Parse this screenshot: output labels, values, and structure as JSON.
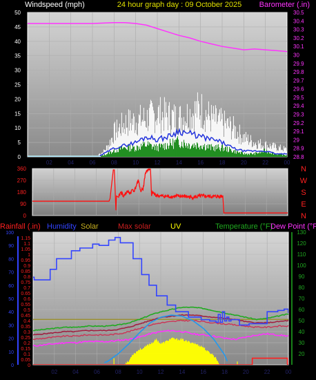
{
  "title": "24 hour graph day : 09 October 2025",
  "colors": {
    "wind_axis": "#ffffff",
    "baro": "#ff33ff",
    "rain": "#ff2020",
    "humidity": "#3344ff",
    "solar": "#c8b020",
    "maxsolar": "#cc2020",
    "uv": "#ffff00",
    "temp": "#20aa20",
    "dew": "#ff33ff",
    "winddir": "#ff1010",
    "dirlabels": "#ff2020"
  },
  "x_ticks": [
    "02",
    "04",
    "06",
    "08",
    "10",
    "12",
    "14",
    "16",
    "18",
    "20",
    "22",
    "00"
  ],
  "chart_data": [
    {
      "type": "area",
      "ylabel_left": "Windspeed (mph)",
      "ylabel_right": "Barometer (.in)",
      "ylim_left": [
        0,
        50
      ],
      "ylim_right": [
        28.8,
        30.5
      ],
      "left_ticks": [
        "0",
        "5",
        "10",
        "15",
        "20",
        "25",
        "30",
        "35",
        "40",
        "45",
        "50"
      ],
      "right_ticks": [
        "28.8",
        "28.9",
        "29",
        "29.1",
        "29.2",
        "29.3",
        "29.4",
        "29.5",
        "29.6",
        "29.7",
        "29.8",
        "29.9",
        "30",
        "30.1",
        "30.2",
        "30.3",
        "30.4",
        "30.5"
      ],
      "series": [
        {
          "name": "Barometer",
          "axis": "right",
          "x": [
            0,
            2,
            4,
            6,
            8,
            9,
            10,
            11,
            12,
            13,
            14,
            15,
            16,
            17,
            18,
            19,
            20,
            21,
            22,
            23,
            24
          ],
          "values": [
            30.37,
            30.37,
            30.37,
            30.37,
            30.38,
            30.38,
            30.37,
            30.35,
            30.31,
            30.27,
            30.23,
            30.2,
            30.16,
            30.13,
            30.1,
            30.08,
            30.06,
            30.07,
            30.06,
            30.05,
            30.04
          ]
        },
        {
          "name": "Gust",
          "axis": "left",
          "x": [
            0,
            6.5,
            7,
            7.5,
            8,
            9,
            10,
            11,
            12,
            13,
            14,
            15,
            16,
            17,
            18,
            19,
            20,
            21,
            22,
            23,
            24
          ],
          "values": [
            1,
            1,
            2,
            5,
            10,
            14,
            15,
            16,
            18,
            17,
            16,
            18,
            20,
            16,
            14,
            12,
            8,
            6,
            5,
            4,
            3
          ]
        },
        {
          "name": "Average",
          "axis": "left",
          "x": [
            0,
            6.5,
            7,
            8,
            9,
            10,
            11,
            12,
            13,
            14,
            15,
            16,
            17,
            18,
            19,
            20,
            21,
            22,
            23,
            24
          ],
          "values": [
            0,
            0,
            1,
            3,
            4,
            5,
            7,
            6,
            7,
            9,
            8,
            7,
            6,
            5,
            3,
            2,
            2,
            2,
            1,
            1
          ]
        },
        {
          "name": "Speed",
          "axis": "left",
          "x": [
            0,
            6.5,
            7,
            8,
            9,
            10,
            11,
            12,
            13,
            14,
            15,
            16,
            17,
            18,
            19,
            20,
            21,
            22,
            23,
            24
          ],
          "values": [
            0,
            0,
            0.5,
            2,
            3,
            3,
            4,
            3,
            4,
            5,
            4,
            4,
            3,
            3,
            2,
            1,
            1,
            2,
            1,
            0.5
          ]
        }
      ]
    },
    {
      "type": "line",
      "ylim": [
        0,
        360
      ],
      "left_ticks": [
        "0",
        "90",
        "180",
        "270",
        "360"
      ],
      "direction_labels": [
        "N",
        "W",
        "S",
        "E",
        "N"
      ],
      "series": [
        {
          "name": "Wind Direction",
          "x": [
            0,
            7.2,
            7.3,
            7.6,
            7.7,
            7.85,
            7.9,
            8.1,
            8.3,
            8.6,
            8.9,
            9.2,
            9.4,
            9.6,
            9.8,
            10.0,
            10.2,
            10.3,
            10.4,
            10.6,
            10.8,
            11.1,
            11.2,
            11.3,
            11.5,
            12,
            13,
            14,
            15,
            16,
            17,
            17.9,
            18.0,
            24
          ],
          "values": [
            110,
            110,
            130,
            350,
            350,
            40,
            150,
            140,
            180,
            150,
            185,
            170,
            200,
            190,
            240,
            260,
            180,
            210,
            195,
            320,
            350,
            350,
            150,
            180,
            160,
            150,
            145,
            150,
            140,
            150,
            145,
            150,
            20,
            20
          ]
        }
      ]
    },
    {
      "type": "line",
      "ylabel_left": "Rainfall (.in)",
      "ylabel_left2": "Humidity",
      "legend": [
        "Solar",
        "Max solar",
        "UV"
      ],
      "ylabel_right": "Temperature (°F)",
      "ylabel_right2": "Dew Point (°F)",
      "ylim_humidity": [
        0,
        100
      ],
      "ylim_rain": [
        0,
        1.2
      ],
      "ylim_temp": [
        10,
        130
      ],
      "humidity_ticks": [
        "0",
        "10",
        "20",
        "30",
        "40",
        "50",
        "60",
        "70",
        "80",
        "90",
        "100"
      ],
      "rain_ticks": [
        "0",
        "0.05",
        "0.1",
        "0.15",
        "0.2",
        "0.25",
        "0.3",
        "0.35",
        "0.4",
        "0.45",
        "0.5",
        "0.55",
        "0.6",
        "0.65",
        "0.7",
        "0.75",
        "0.8",
        "0.85",
        "0.9",
        "0.95",
        "1",
        "1.05",
        "1.1",
        "1.15"
      ],
      "temp_ticks": [
        "20",
        "30",
        "40",
        "50",
        "60",
        "70",
        "80",
        "90",
        "100",
        "110",
        "120",
        "130"
      ],
      "series": [
        {
          "name": "Humidity",
          "axis": "humidity",
          "x": [
            0,
            0.1,
            1.6,
            2.2,
            3.6,
            4.4,
            5.6,
            6.2,
            7.1,
            7.7,
            8.2,
            9.4,
            10.2,
            10.9,
            11.6,
            12.6,
            13.4,
            14.6,
            15.8,
            16.6,
            17.2,
            17.4,
            17.6,
            17.8,
            18.0,
            18.2,
            18.4,
            18.6,
            19.0,
            19.4,
            20.3,
            21.2,
            22.0,
            23.0,
            23.6,
            24
          ],
          "values": [
            66,
            64,
            72,
            80,
            86,
            88,
            91,
            90,
            94,
            96,
            92,
            80,
            68,
            60,
            52,
            45,
            40,
            36,
            34,
            33,
            32,
            38,
            32,
            40,
            33,
            36,
            33,
            34,
            34,
            30,
            31,
            31,
            40,
            41,
            42,
            39
          ]
        },
        {
          "name": "Max solar",
          "axis": "temp",
          "x": [
            0,
            1,
            2,
            3,
            4,
            5,
            6,
            7,
            8,
            9,
            10,
            11,
            12,
            13,
            14,
            15,
            16,
            17,
            18,
            19,
            20,
            21,
            22,
            23,
            24
          ],
          "values": [
            51,
            51,
            51,
            51,
            51,
            51,
            51,
            51,
            51,
            51,
            51,
            51,
            51,
            51,
            51,
            51,
            51,
            51,
            51,
            51,
            51,
            51,
            51,
            51,
            51
          ]
        },
        {
          "name": "Temperature",
          "axis": "temp",
          "x": [
            0,
            1,
            2,
            3,
            4,
            5,
            6,
            7,
            8,
            9,
            10,
            11,
            12,
            13,
            14,
            15,
            16,
            17,
            18,
            19,
            20,
            21,
            22,
            23,
            24
          ],
          "values": [
            41,
            42,
            43,
            44,
            44,
            45,
            45,
            45,
            46,
            48,
            51,
            55,
            58,
            60,
            62,
            62,
            61,
            59,
            57,
            55,
            53,
            51,
            52,
            54,
            56
          ]
        },
        {
          "name": "Heat index",
          "axis": "temp",
          "x": [
            0,
            1,
            2,
            3,
            4,
            5,
            6,
            7,
            8,
            9,
            10,
            11,
            12,
            13,
            14,
            15,
            16,
            17,
            18,
            19,
            20,
            21,
            22,
            23,
            24
          ],
          "values": [
            37,
            38,
            39,
            40,
            40,
            41,
            41,
            41,
            42,
            44,
            47,
            50,
            53,
            54,
            55,
            55,
            54,
            53,
            52,
            51,
            49,
            48,
            48,
            49,
            50
          ]
        },
        {
          "name": "Apparent",
          "axis": "temp",
          "x": [
            0,
            1,
            2,
            3,
            4,
            5,
            6,
            7,
            8,
            9,
            10,
            11,
            12,
            13,
            14,
            15,
            16,
            17,
            18,
            19,
            20,
            21,
            22,
            23,
            24
          ],
          "values": [
            33,
            34,
            35,
            36,
            36,
            37,
            37,
            37,
            38,
            40,
            43,
            46,
            48,
            49,
            50,
            50,
            49,
            48,
            47,
            46,
            45,
            44,
            44,
            45,
            45
          ]
        },
        {
          "name": "Dew Point",
          "axis": "temp",
          "x": [
            0,
            1,
            2,
            3,
            4,
            5,
            6,
            7,
            8,
            9,
            10,
            11,
            12,
            13,
            14,
            15,
            16,
            17,
            18,
            19,
            20,
            21,
            22,
            23,
            24
          ],
          "values": [
            27,
            28,
            29,
            30,
            30,
            31,
            31,
            31,
            32,
            33,
            35,
            38,
            40,
            41,
            40,
            38,
            37,
            36,
            34,
            33,
            35,
            37,
            38,
            37,
            36
          ]
        },
        {
          "name": "UV",
          "axis": "temp",
          "x": [
            6.7,
            7,
            8,
            9,
            10,
            11,
            12,
            13,
            14,
            15,
            16,
            17,
            18,
            18.3
          ],
          "values": [
            12,
            13,
            20,
            29,
            39,
            48,
            53,
            55,
            54,
            50,
            43,
            33,
            19,
            12
          ]
        },
        {
          "name": "Solar",
          "axis": "temp",
          "x": [
            8.6,
            9,
            9.3,
            9.6,
            10,
            10.4,
            10.8,
            11.2,
            11.6,
            12,
            12.5,
            13,
            13.5,
            14,
            14.5,
            15,
            15.5,
            16,
            16.4,
            16.8,
            17.2,
            17.5
          ],
          "values": [
            11,
            13,
            19,
            21,
            24,
            25,
            28,
            30,
            33,
            29,
            31,
            34,
            33,
            33,
            31,
            30,
            28,
            26,
            22,
            20,
            16,
            11
          ]
        },
        {
          "name": "Rainfall",
          "axis": "rain",
          "x": [
            0,
            20.6,
            20.61,
            23.9,
            23.91,
            24
          ],
          "values": [
            0,
            0,
            0.06,
            0.06,
            0,
            0
          ]
        }
      ]
    }
  ]
}
